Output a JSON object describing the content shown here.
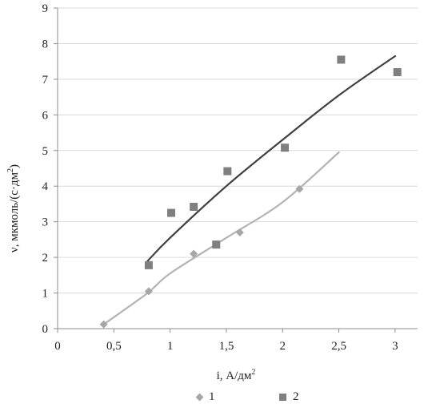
{
  "chart_data": {
    "type": "scatter",
    "title": "",
    "xlabel_main": "i, А/дм",
    "xlabel_sup": "2",
    "ylabel_main": "ν, мкмоль/(с·дм",
    "ylabel_sup": "2",
    "ylabel_close": ")",
    "xlim": [
      0,
      3.2
    ],
    "ylim": [
      0,
      9
    ],
    "x_ticks": [
      0,
      0.5,
      1,
      1.5,
      2,
      2.5,
      3
    ],
    "x_tick_labels": [
      "0",
      "0,5",
      "1",
      "1,5",
      "2",
      "2,5",
      "3"
    ],
    "y_ticks": [
      0,
      1,
      2,
      3,
      4,
      5,
      6,
      7,
      8,
      9
    ],
    "y_tick_labels": [
      "0",
      "1",
      "2",
      "3",
      "4",
      "5",
      "6",
      "7",
      "8",
      "9"
    ],
    "grid": "horizontal",
    "legend_position": "bottom",
    "series": [
      {
        "name": "1",
        "marker": "diamond",
        "color": "#a6a6a6",
        "trend_color": "#b3b3b3",
        "points": [
          {
            "x": 0.41,
            "y": 0.12
          },
          {
            "x": 0.81,
            "y": 1.05
          },
          {
            "x": 1.21,
            "y": 2.1
          },
          {
            "x": 1.62,
            "y": 2.7
          },
          {
            "x": 2.15,
            "y": 3.92
          }
        ],
        "trend": [
          {
            "x": 0.41,
            "y": 0.12
          },
          {
            "x": 0.8,
            "y": 1.0
          },
          {
            "x": 1.0,
            "y": 1.55
          },
          {
            "x": 1.5,
            "y": 2.55
          },
          {
            "x": 2.0,
            "y": 3.55
          },
          {
            "x": 2.5,
            "y": 4.95
          }
        ]
      },
      {
        "name": "2",
        "marker": "square",
        "color": "#7f7f7f",
        "trend_color": "#404040",
        "points": [
          {
            "x": 0.81,
            "y": 1.78
          },
          {
            "x": 1.01,
            "y": 3.25
          },
          {
            "x": 1.21,
            "y": 3.42
          },
          {
            "x": 1.41,
            "y": 2.36
          },
          {
            "x": 1.51,
            "y": 4.42
          },
          {
            "x": 2.02,
            "y": 5.08
          },
          {
            "x": 2.52,
            "y": 7.55
          },
          {
            "x": 3.02,
            "y": 7.2
          }
        ],
        "trend": [
          {
            "x": 0.8,
            "y": 1.9
          },
          {
            "x": 1.0,
            "y": 2.55
          },
          {
            "x": 1.5,
            "y": 4.0
          },
          {
            "x": 2.0,
            "y": 5.3
          },
          {
            "x": 2.5,
            "y": 6.55
          },
          {
            "x": 3.0,
            "y": 7.65
          }
        ]
      }
    ]
  }
}
